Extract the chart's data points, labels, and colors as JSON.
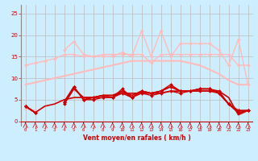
{
  "bg_color": "#cceeff",
  "grid_color": "#bbbbbb",
  "xlabel": "Vent moyen/en rafales ( km/h )",
  "xlabel_color": "#cc0000",
  "tick_color": "#cc0000",
  "x_ticks": [
    0,
    1,
    2,
    3,
    4,
    5,
    6,
    7,
    8,
    9,
    10,
    11,
    12,
    13,
    14,
    15,
    16,
    17,
    18,
    19,
    20,
    21,
    22,
    23
  ],
  "ylim": [
    -1,
    27
  ],
  "xlim": [
    -0.5,
    23.5
  ],
  "yticks": [
    0,
    5,
    10,
    15,
    20,
    25
  ],
  "lines": [
    {
      "data": [
        8.5,
        9.0,
        9.5,
        10.0,
        10.5,
        11.0,
        11.5,
        12.0,
        12.5,
        13.0,
        13.5,
        14.0,
        14.0,
        14.0,
        14.0,
        14.0,
        14.0,
        13.5,
        13.0,
        12.0,
        11.0,
        9.5,
        8.5,
        8.5
      ],
      "color": "#ffbbbb",
      "marker": null,
      "lw": 1.5,
      "ms": 0
    },
    {
      "data": [
        13.0,
        13.5,
        14.0,
        14.5,
        15.5,
        15.5,
        15.0,
        15.0,
        15.5,
        15.5,
        15.5,
        15.5,
        15.5,
        13.5,
        15.5,
        15.5,
        15.5,
        15.5,
        15.5,
        15.5,
        15.5,
        15.5,
        13.0,
        13.0
      ],
      "color": "#ffbbbb",
      "marker": "D",
      "lw": 1.0,
      "ms": 2.0
    },
    {
      "data": [
        3.0,
        2.5,
        null,
        null,
        16.5,
        18.5,
        15.5,
        15.0,
        15.0,
        15.0,
        16.0,
        15.0,
        21.0,
        15.0,
        21.0,
        15.0,
        18.0,
        18.0,
        18.0,
        18.0,
        16.5,
        13.0,
        19.0,
        8.5
      ],
      "color": "#ffbbbb",
      "marker": "D",
      "lw": 1.0,
      "ms": 2.0
    },
    {
      "data": [
        3.5,
        2.0,
        null,
        null,
        4.5,
        8.0,
        5.0,
        5.5,
        6.0,
        5.5,
        7.5,
        5.5,
        7.0,
        6.5,
        7.0,
        8.5,
        7.0,
        7.0,
        7.5,
        7.5,
        6.5,
        4.0,
        2.5,
        2.5
      ],
      "color": "#cc0000",
      "marker": "D",
      "lw": 1.0,
      "ms": 2.0
    },
    {
      "data": [
        3.5,
        2.0,
        null,
        null,
        4.0,
        8.0,
        5.0,
        5.0,
        5.5,
        5.5,
        6.5,
        5.5,
        6.5,
        6.0,
        6.5,
        7.0,
        6.5,
        7.0,
        7.0,
        7.0,
        6.5,
        4.0,
        2.0,
        2.5
      ],
      "color": "#cc0000",
      "marker": "D",
      "lw": 1.0,
      "ms": 2.0
    },
    {
      "data": [
        3.5,
        2.0,
        null,
        null,
        4.5,
        8.0,
        5.0,
        5.5,
        5.5,
        5.5,
        7.0,
        5.5,
        7.0,
        6.5,
        7.0,
        8.0,
        7.0,
        7.0,
        7.5,
        7.5,
        7.0,
        4.0,
        2.5,
        2.5
      ],
      "color": "#cc0000",
      "marker": "D",
      "lw": 1.0,
      "ms": 2.0
    },
    {
      "data": [
        3.5,
        2.0,
        null,
        null,
        4.0,
        7.5,
        5.5,
        5.5,
        6.0,
        6.0,
        7.0,
        6.0,
        7.0,
        6.5,
        7.0,
        8.0,
        7.0,
        7.0,
        7.5,
        7.5,
        6.5,
        4.0,
        2.0,
        2.5
      ],
      "color": "#cc0000",
      "marker": null,
      "lw": 1.2,
      "ms": 0
    },
    {
      "data": [
        3.5,
        2.0,
        3.5,
        4.0,
        5.0,
        5.5,
        5.5,
        5.5,
        6.0,
        6.0,
        6.5,
        6.5,
        6.5,
        6.5,
        6.5,
        7.0,
        7.0,
        7.0,
        7.0,
        7.0,
        7.0,
        5.5,
        1.5,
        2.5
      ],
      "color": "#cc0000",
      "marker": null,
      "lw": 1.2,
      "ms": 0
    }
  ],
  "wind_arrow_color": "#cc0000",
  "wind_angles_deg": [
    225,
    225,
    225,
    200,
    215,
    200,
    210,
    200,
    270,
    200,
    215,
    200,
    215,
    200,
    215,
    180,
    215,
    200,
    200,
    215,
    215,
    180,
    215,
    180
  ]
}
